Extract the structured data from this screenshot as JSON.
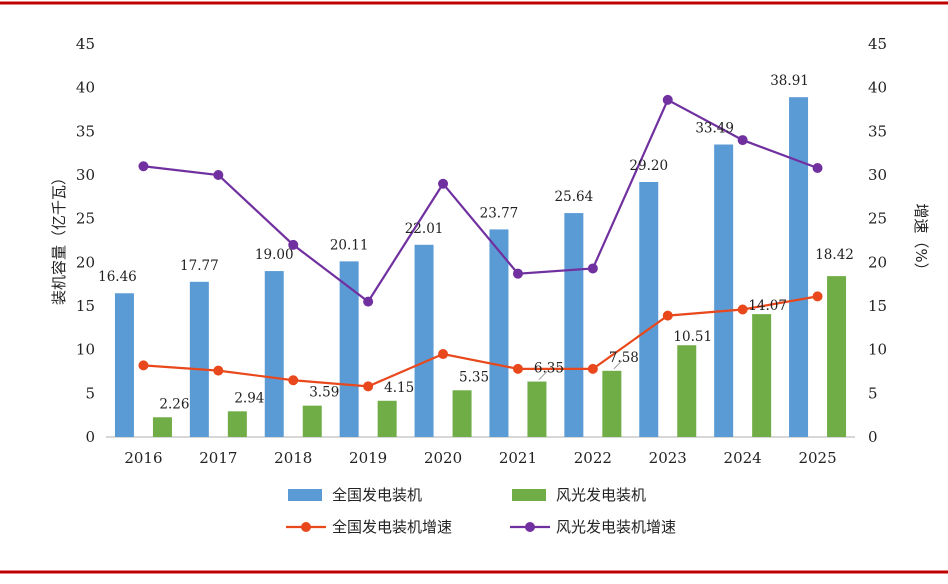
{
  "chart_data": {
    "type": "bar",
    "categories": [
      "2016",
      "2017",
      "2018",
      "2019",
      "2020",
      "2021",
      "2022",
      "2023",
      "2024",
      "2025"
    ],
    "series": [
      {
        "name": "全国发电装机",
        "kind": "bar",
        "axis": "left",
        "color": "#5B9BD5",
        "values": [
          16.46,
          17.77,
          19.0,
          20.11,
          22.01,
          23.77,
          25.64,
          29.2,
          33.49,
          38.91
        ],
        "labels": [
          "16.46",
          "17.77",
          "19.00",
          "20.11",
          "22.01",
          "23.77",
          "25.64",
          "29.20",
          "33.49",
          "38.91"
        ]
      },
      {
        "name": "风光发电装机",
        "kind": "bar",
        "axis": "left",
        "color": "#70AD47",
        "values": [
          2.26,
          2.94,
          3.59,
          4.15,
          5.35,
          6.35,
          7.58,
          10.51,
          14.07,
          18.42
        ],
        "labels": [
          "2.26",
          "2.94",
          "3.59",
          "4.15",
          "5.35",
          "6.35",
          "7.58",
          "10.51",
          "14.07",
          "18.42"
        ]
      },
      {
        "name": "全国发电装机增速",
        "kind": "line",
        "axis": "right",
        "color": "#E8481C",
        "values": [
          8.2,
          7.6,
          6.5,
          5.8,
          9.5,
          7.8,
          7.8,
          13.9,
          14.6,
          16.1
        ]
      },
      {
        "name": "风光发电装机增速",
        "kind": "line",
        "axis": "right",
        "color": "#7030A0",
        "values": [
          31.0,
          30.0,
          22.0,
          15.5,
          29.0,
          18.7,
          19.3,
          38.6,
          34.0,
          30.8
        ]
      }
    ],
    "ylabel": "装机容量（亿千瓦）",
    "y2label": "增速（%）",
    "ylim": [
      0,
      45
    ],
    "y2lim": [
      0,
      45
    ],
    "yticks": [
      "0",
      "5",
      "10",
      "15",
      "20",
      "25",
      "30",
      "35",
      "40",
      "45"
    ],
    "legend": "bottom",
    "grid": false
  },
  "colors": {
    "frame": "#C00000",
    "axis": "#BFBFBF"
  }
}
